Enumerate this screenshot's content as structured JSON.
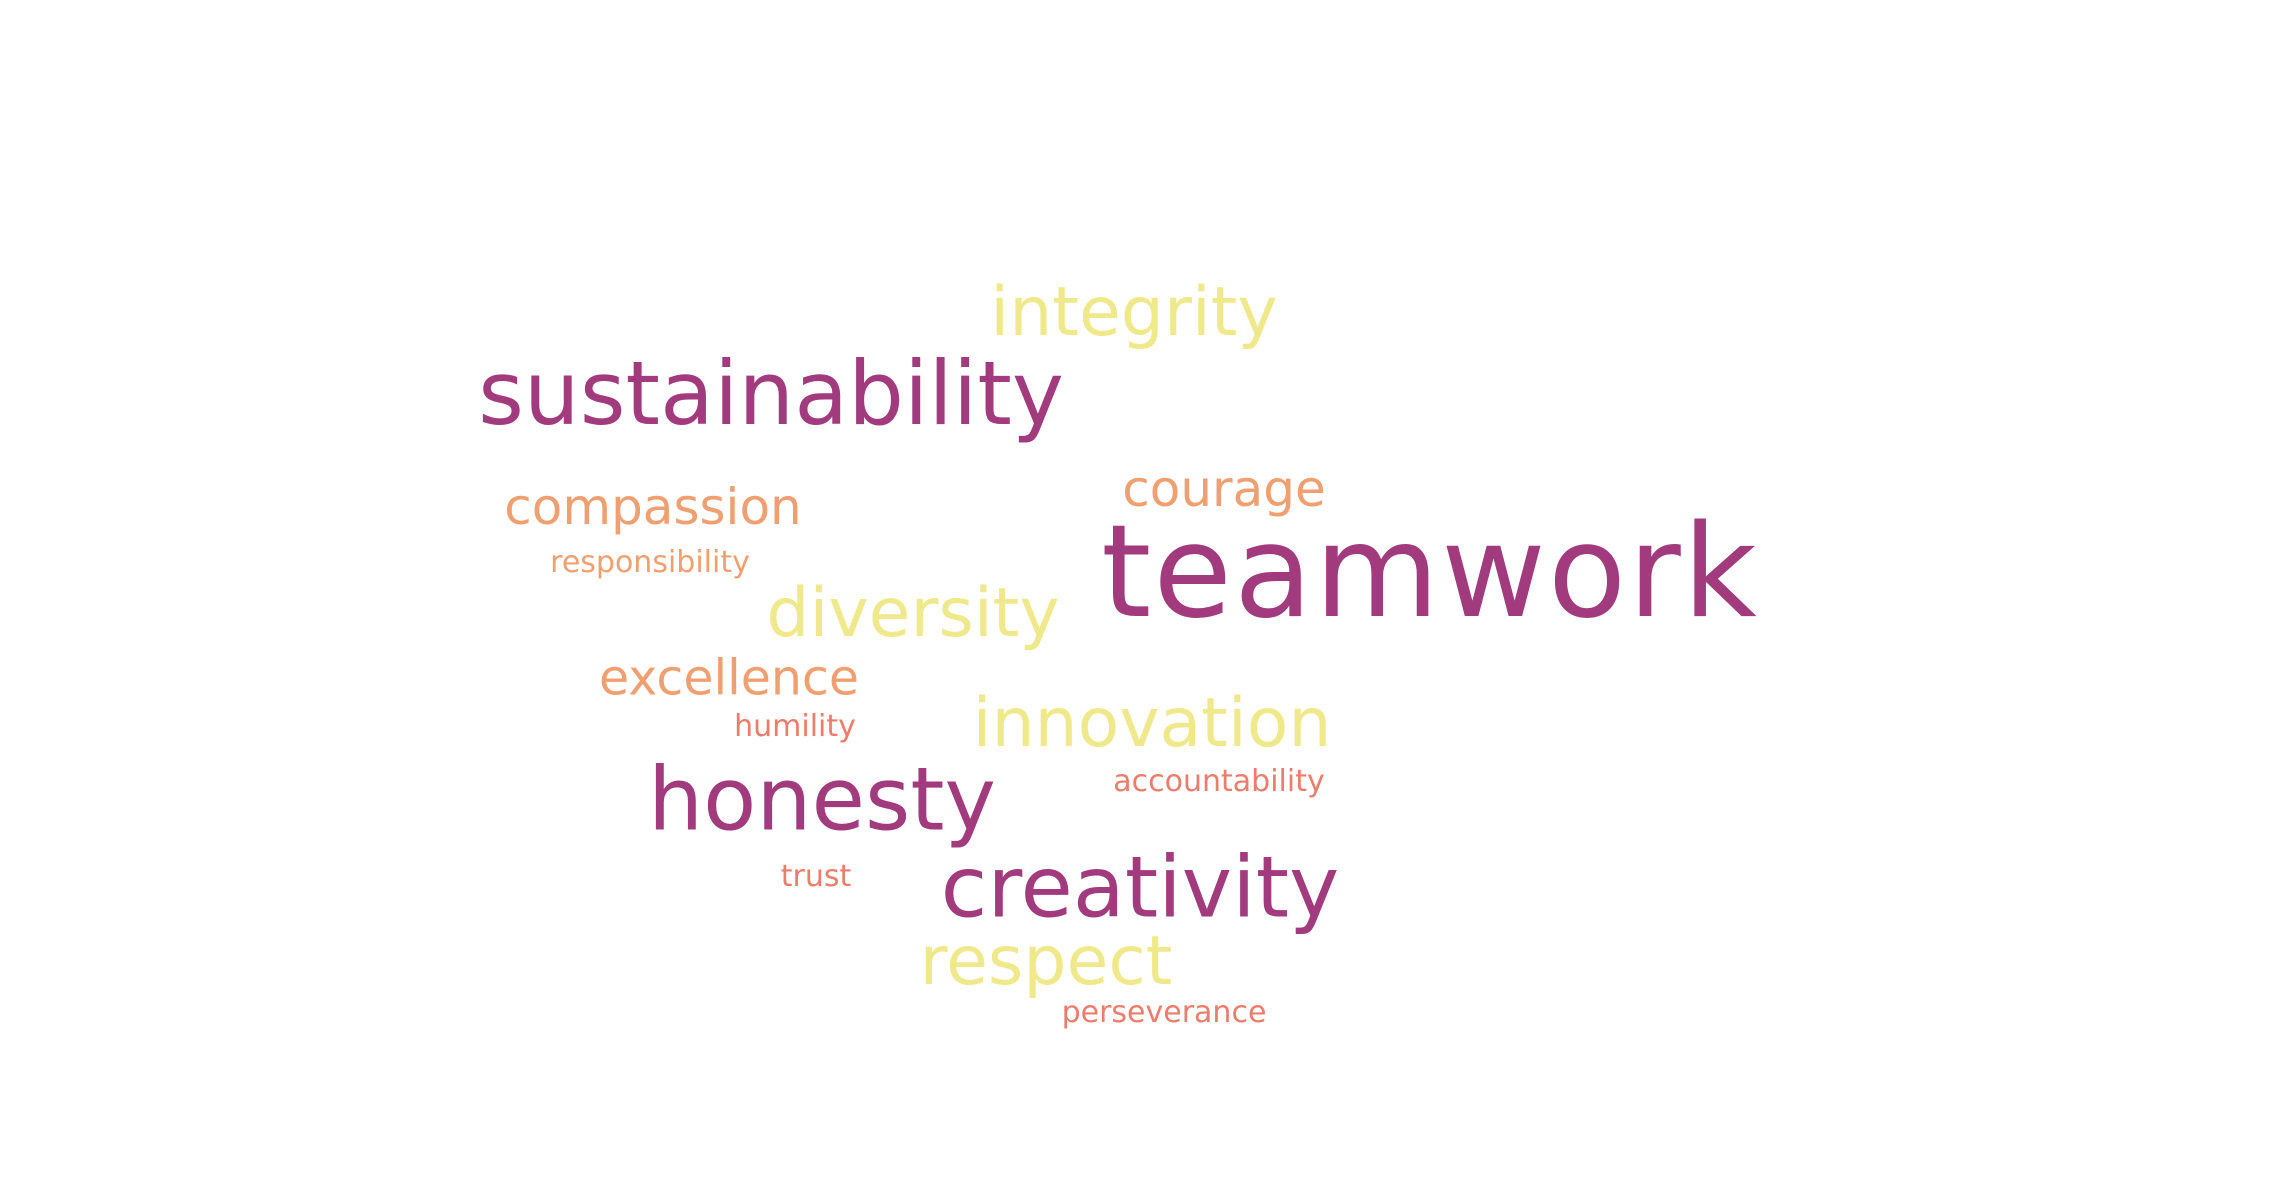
{
  "colors": {
    "background": "#ffffff",
    "purple": "#a23b7e",
    "yellow": "#f0e98c",
    "orange": "#f0a070",
    "salmon": "#ec7d6c"
  },
  "words": [
    {
      "key": "teamwork",
      "text": "teamwork",
      "color": "#a23b7e"
    },
    {
      "key": "sustainability",
      "text": "sustainability",
      "color": "#a23b7e"
    },
    {
      "key": "honesty",
      "text": "honesty",
      "color": "#a23b7e"
    },
    {
      "key": "creativity",
      "text": "creativity",
      "color": "#a23b7e"
    },
    {
      "key": "integrity",
      "text": "integrity",
      "color": "#f0e98c"
    },
    {
      "key": "diversity",
      "text": "diversity",
      "color": "#f0e98c"
    },
    {
      "key": "innovation",
      "text": "innovation",
      "color": "#f0e98c"
    },
    {
      "key": "respect",
      "text": "respect",
      "color": "#f0e98c"
    },
    {
      "key": "compassion",
      "text": "compassion",
      "color": "#f0a070"
    },
    {
      "key": "courage",
      "text": "courage",
      "color": "#f0a070"
    },
    {
      "key": "excellence",
      "text": "excellence",
      "color": "#f0a070"
    },
    {
      "key": "responsibility",
      "text": "responsibility",
      "color": "#f0a070"
    },
    {
      "key": "humility",
      "text": "humility",
      "color": "#ec7d6c"
    },
    {
      "key": "accountability",
      "text": "accountability",
      "color": "#ec7d6c"
    },
    {
      "key": "trust",
      "text": "trust",
      "color": "#ec7d6c"
    },
    {
      "key": "perseverance",
      "text": "perseverance",
      "color": "#ec7d6c"
    }
  ]
}
